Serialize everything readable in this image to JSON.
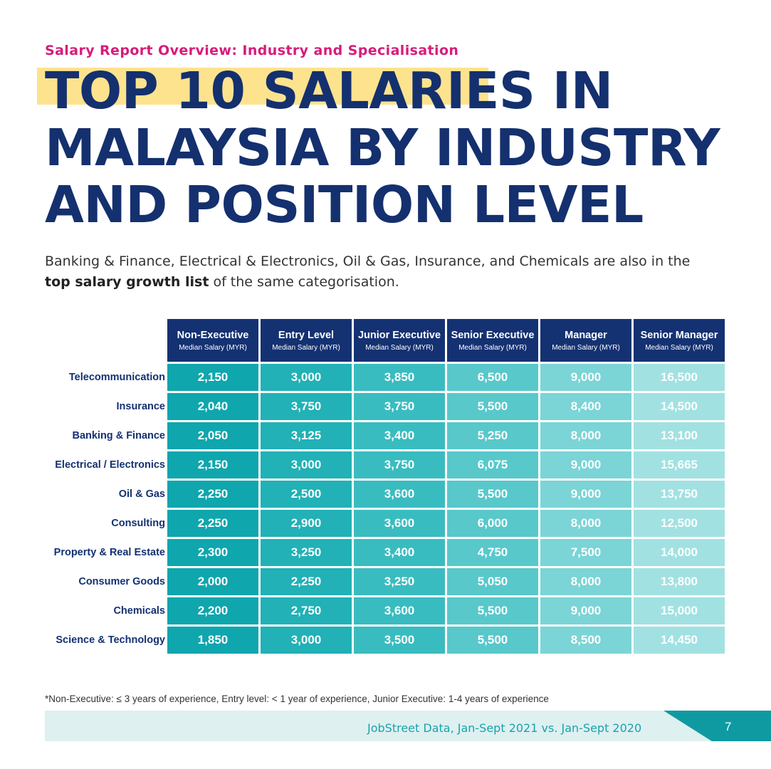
{
  "header": {
    "kicker": "Salary Report Overview: Industry and Specialisation",
    "title_lines": [
      "TOP 10 SALARIES IN",
      "MALAYSIA BY INDUSTRY",
      "AND POSITION LEVEL"
    ]
  },
  "intro": {
    "before": "Banking & Finance, Electrical & Electronics, Oil & Gas, Insurance, and Chemicals are also in the ",
    "bold": "top salary growth list",
    "after": " of the same categorisation."
  },
  "table": {
    "columns": [
      {
        "label": "Non-Executive",
        "sub": "Median Salary (MYR)"
      },
      {
        "label": "Entry Level",
        "sub": "Median Salary (MYR)"
      },
      {
        "label": "Junior Executive",
        "sub": "Median Salary (MYR)"
      },
      {
        "label": "Senior Executive",
        "sub": "Median Salary (MYR)"
      },
      {
        "label": "Manager",
        "sub": "Median Salary (MYR)"
      },
      {
        "label": "Senior Manager",
        "sub": "Median Salary (MYR)"
      }
    ],
    "rows": [
      {
        "industry": "Telecommunication",
        "values": [
          "2,150",
          "3,000",
          "3,850",
          "6,500",
          "9,000",
          "16,500"
        ]
      },
      {
        "industry": "Insurance",
        "values": [
          "2,040",
          "3,750",
          "3,750",
          "5,500",
          "8,400",
          "14,500"
        ]
      },
      {
        "industry": "Banking & Finance",
        "values": [
          "2,050",
          "3,125",
          "3,400",
          "5,250",
          "8,000",
          "13,100"
        ]
      },
      {
        "industry": "Electrical / Electronics",
        "values": [
          "2,150",
          "3,000",
          "3,750",
          "6,075",
          "9,000",
          "15,665"
        ]
      },
      {
        "industry": "Oil & Gas",
        "values": [
          "2,250",
          "2,500",
          "3,600",
          "5,500",
          "9,000",
          "13,750"
        ]
      },
      {
        "industry": "Consulting",
        "values": [
          "2,250",
          "2,900",
          "3,600",
          "6,000",
          "8,000",
          "12,500"
        ]
      },
      {
        "industry": "Property & Real Estate",
        "values": [
          "2,300",
          "3,250",
          "3,400",
          "4,750",
          "7,500",
          "14,000"
        ]
      },
      {
        "industry": "Consumer Goods",
        "values": [
          "2,000",
          "2,250",
          "3,250",
          "5,050",
          "8,000",
          "13,800"
        ]
      },
      {
        "industry": "Chemicals",
        "values": [
          "2,200",
          "2,750",
          "3,600",
          "5,500",
          "9,000",
          "15,000"
        ]
      },
      {
        "industry": "Science & Technology",
        "values": [
          "1,850",
          "3,000",
          "3,500",
          "5,500",
          "8,500",
          "14,450"
        ]
      }
    ]
  },
  "footnote": "*Non-Executive: ≤ 3 years of experience, Entry level: < 1 year of experience, Junior Executive: 1-4 years of experience",
  "footer": {
    "source": "JobStreet Data, Jan-Sept 2021 vs. Jan-Sept 2020",
    "page_number": "7"
  },
  "colors": {
    "navy": "#143172",
    "magenta": "#d81b7b",
    "highlight": "#fde38e",
    "teal_gradient": [
      "#0fa6ad",
      "#21b1b6",
      "#39bcc0",
      "#58c8cb",
      "#7bd4d6",
      "#a2e1e2"
    ]
  }
}
